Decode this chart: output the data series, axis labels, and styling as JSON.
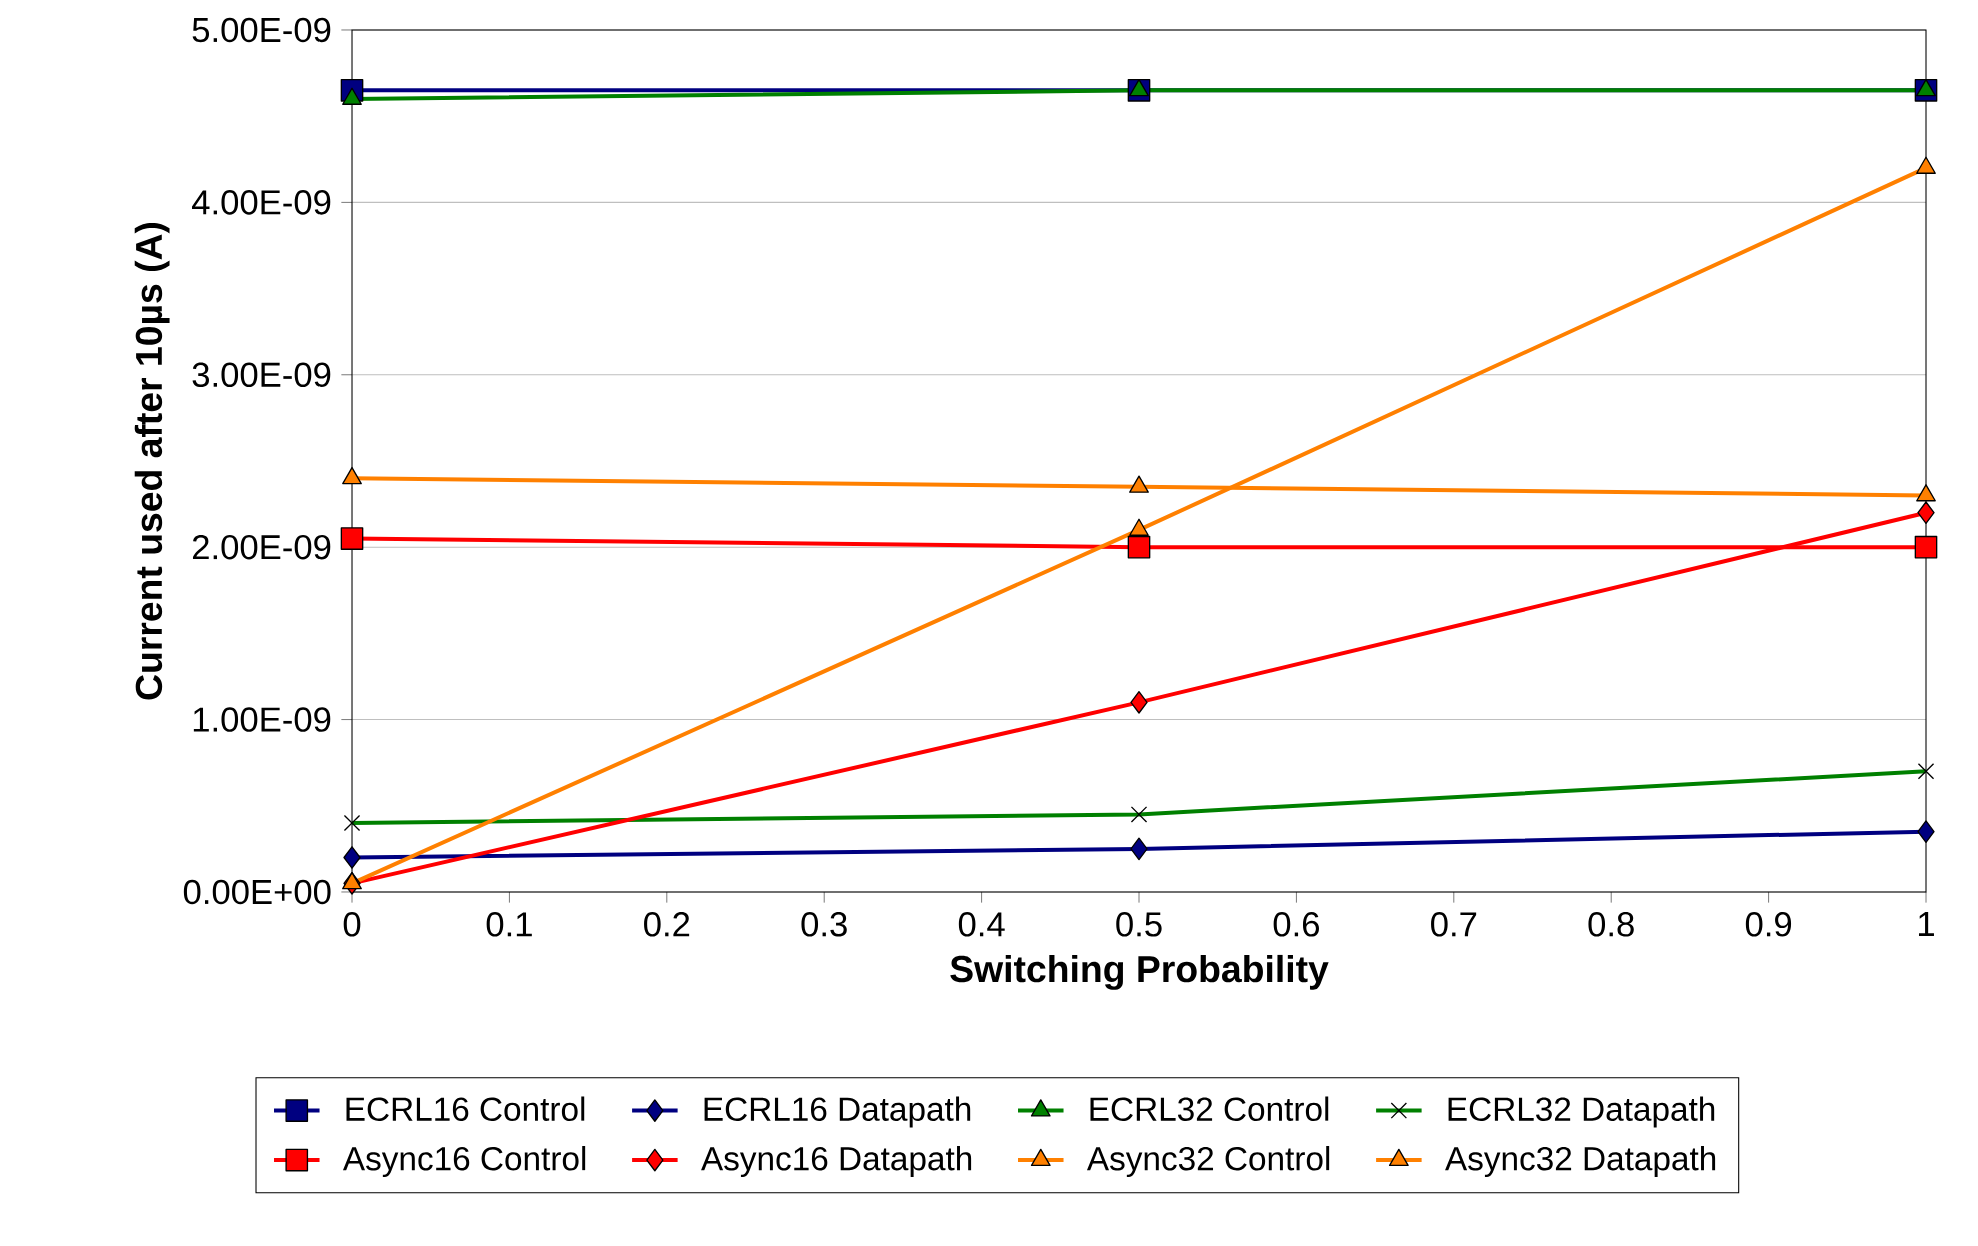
{
  "chart_data": {
    "type": "line",
    "xlabel": "Switching Probability",
    "ylabel": "Current used after 10µs (A)",
    "x": [
      0,
      0.5,
      1
    ],
    "series": [
      {
        "name": "ECRL16 Control",
        "color": "#000080",
        "marker": "square",
        "values": [
          4.65e-09,
          4.65e-09,
          4.65e-09
        ]
      },
      {
        "name": "ECRL16 Datapath",
        "color": "#000080",
        "marker": "diamond",
        "values": [
          2e-10,
          2.5e-10,
          3.5e-10
        ]
      },
      {
        "name": "ECRL32 Control",
        "color": "#008000",
        "marker": "triangle",
        "values": [
          4.6e-09,
          4.65e-09,
          4.65e-09
        ]
      },
      {
        "name": "ECRL32 Datapath",
        "color": "#008000",
        "marker": "cross",
        "values": [
          4e-10,
          4.5e-10,
          7e-10
        ]
      },
      {
        "name": "Async16 Control",
        "color": "#ff0000",
        "marker": "square",
        "values": [
          2.05e-09,
          2e-09,
          2e-09
        ]
      },
      {
        "name": "Async16 Datapath",
        "color": "#ff0000",
        "marker": "diamond",
        "values": [
          5e-11,
          1.1e-09,
          2.2e-09
        ]
      },
      {
        "name": "Async32 Control",
        "color": "#ff8000",
        "marker": "triangle",
        "values": [
          2.4e-09,
          2.35e-09,
          2.3e-09
        ]
      },
      {
        "name": "Async32 Datapath",
        "color": "#ff8000",
        "marker": "triangle",
        "values": [
          5e-11,
          2.1e-09,
          4.2e-09
        ]
      }
    ],
    "xlim": [
      0,
      1
    ],
    "xticks": [
      0,
      0.1,
      0.2,
      0.3,
      0.4,
      0.5,
      0.6,
      0.7,
      0.8,
      0.9,
      1
    ],
    "ylim": [
      0,
      5e-09
    ],
    "yticks": [
      {
        "value": 0,
        "label": "0.00E+00"
      },
      {
        "value": 1e-09,
        "label": "1.00E-09"
      },
      {
        "value": 2e-09,
        "label": "2.00E-09"
      },
      {
        "value": 3e-09,
        "label": "3.00E-09"
      },
      {
        "value": 4e-09,
        "label": "4.00E-09"
      },
      {
        "value": 5e-09,
        "label": "5.00E-09"
      }
    ],
    "grid": "y",
    "legend": "bottom",
    "line_style": "solid"
  }
}
